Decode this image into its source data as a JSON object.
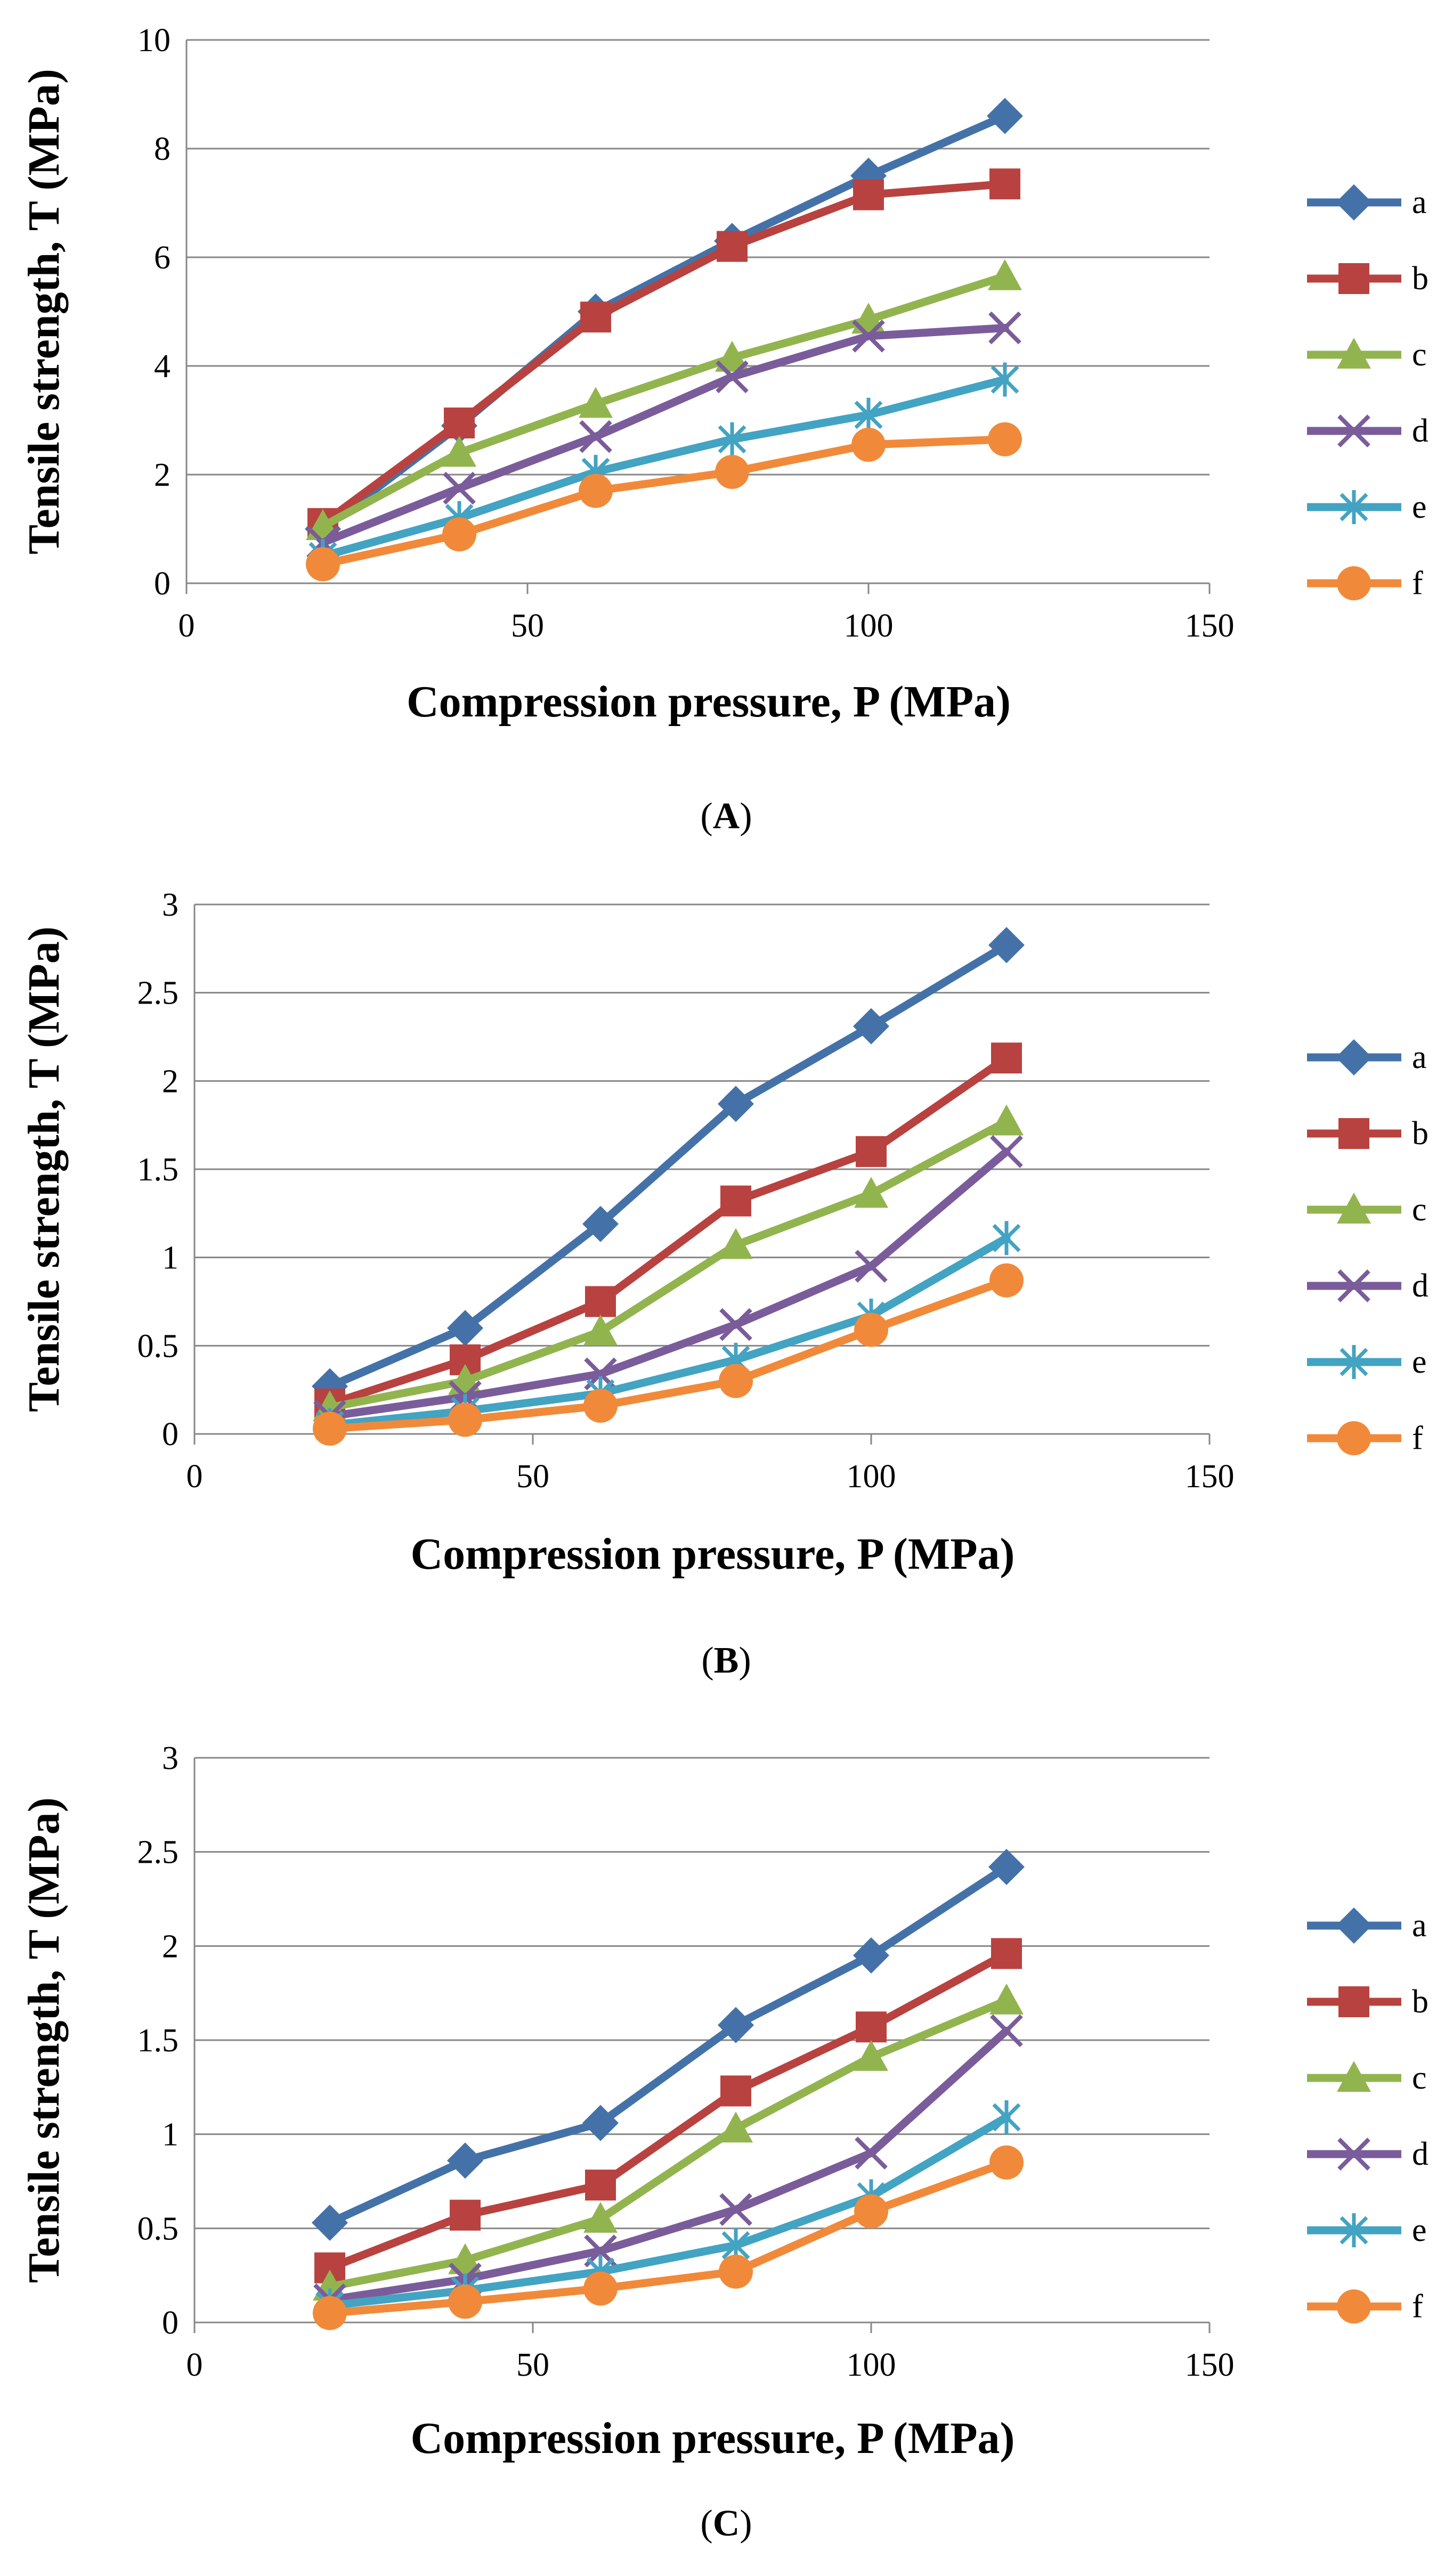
{
  "figure": {
    "series_colors": {
      "a": "#4472A8",
      "b": "#B8423F",
      "c": "#92B44F",
      "d": "#7A5C9B",
      "e": "#43A3C2",
      "f": "#F08A3A"
    },
    "grid_color": "#878787",
    "axis_color": "#878787"
  },
  "chart_data": [
    {
      "type": "line",
      "panel_label": "A",
      "xlabel": "Compression pressure, P (MPa)",
      "ylabel": "Tensile strength, T (MPa)",
      "xlim": [
        0,
        150
      ],
      "ylim": [
        0,
        10
      ],
      "xticks": [
        0,
        50,
        100,
        150
      ],
      "yticks": [
        0,
        2,
        4,
        6,
        8,
        10
      ],
      "grid": "horizontal",
      "legend_position": "right",
      "x": [
        20,
        40,
        60,
        80,
        100,
        120
      ],
      "series": [
        {
          "name": "a",
          "marker": "diamond",
          "values": [
            1.0,
            2.9,
            5.0,
            6.3,
            7.5,
            8.6
          ]
        },
        {
          "name": "b",
          "marker": "square",
          "values": [
            1.1,
            2.95,
            4.9,
            6.2,
            7.15,
            7.35
          ]
        },
        {
          "name": "c",
          "marker": "triangle",
          "values": [
            1.05,
            2.4,
            3.3,
            4.15,
            4.85,
            5.65
          ]
        },
        {
          "name": "d",
          "marker": "x",
          "values": [
            0.75,
            1.75,
            2.7,
            3.8,
            4.55,
            4.7
          ]
        },
        {
          "name": "e",
          "marker": "asterisk",
          "values": [
            0.5,
            1.2,
            2.05,
            2.65,
            3.1,
            3.75
          ]
        },
        {
          "name": "f",
          "marker": "circle",
          "values": [
            0.35,
            0.9,
            1.7,
            2.05,
            2.55,
            2.65
          ]
        }
      ]
    },
    {
      "type": "line",
      "panel_label": "B",
      "xlabel": "Compression pressure, P (MPa)",
      "ylabel": "Tensile strength, T (MPa)",
      "xlim": [
        0,
        150
      ],
      "ylim": [
        0,
        3
      ],
      "xticks": [
        0,
        50,
        100,
        150
      ],
      "yticks": [
        0,
        0.5,
        1,
        1.5,
        2,
        2.5,
        3
      ],
      "grid": "horizontal",
      "legend_position": "right",
      "x": [
        20,
        40,
        60,
        80,
        100,
        120
      ],
      "series": [
        {
          "name": "a",
          "marker": "diamond",
          "values": [
            0.27,
            0.6,
            1.19,
            1.87,
            2.31,
            2.77
          ]
        },
        {
          "name": "b",
          "marker": "square",
          "values": [
            0.17,
            0.42,
            0.75,
            1.32,
            1.6,
            2.13
          ]
        },
        {
          "name": "c",
          "marker": "triangle",
          "values": [
            0.15,
            0.3,
            0.58,
            1.07,
            1.36,
            1.77
          ]
        },
        {
          "name": "d",
          "marker": "x",
          "values": [
            0.1,
            0.21,
            0.34,
            0.62,
            0.95,
            1.6
          ]
        },
        {
          "name": "e",
          "marker": "asterisk",
          "values": [
            0.05,
            0.13,
            0.23,
            0.42,
            0.67,
            1.11
          ]
        },
        {
          "name": "f",
          "marker": "circle",
          "values": [
            0.03,
            0.08,
            0.16,
            0.3,
            0.59,
            0.87
          ]
        }
      ]
    },
    {
      "type": "line",
      "panel_label": "C",
      "xlabel": "Compression pressure, P (MPa)",
      "ylabel": "Tensile strength, T (MPa)",
      "xlim": [
        0,
        150
      ],
      "ylim": [
        0,
        3
      ],
      "xticks": [
        0,
        50,
        100,
        150
      ],
      "yticks": [
        0,
        0.5,
        1,
        1.5,
        2,
        2.5,
        3
      ],
      "grid": "horizontal",
      "legend_position": "right",
      "x": [
        20,
        40,
        60,
        80,
        100,
        120
      ],
      "series": [
        {
          "name": "a",
          "marker": "diamond",
          "values": [
            0.53,
            0.86,
            1.06,
            1.58,
            1.95,
            2.42
          ]
        },
        {
          "name": "b",
          "marker": "square",
          "values": [
            0.29,
            0.57,
            0.73,
            1.23,
            1.57,
            1.96
          ]
        },
        {
          "name": "c",
          "marker": "triangle",
          "values": [
            0.19,
            0.33,
            0.55,
            1.03,
            1.41,
            1.71
          ]
        },
        {
          "name": "d",
          "marker": "x",
          "values": [
            0.12,
            0.23,
            0.38,
            0.6,
            0.9,
            1.55
          ]
        },
        {
          "name": "e",
          "marker": "asterisk",
          "values": [
            0.09,
            0.17,
            0.27,
            0.41,
            0.67,
            1.09
          ]
        },
        {
          "name": "f",
          "marker": "circle",
          "values": [
            0.05,
            0.11,
            0.18,
            0.27,
            0.59,
            0.85
          ]
        }
      ]
    }
  ]
}
